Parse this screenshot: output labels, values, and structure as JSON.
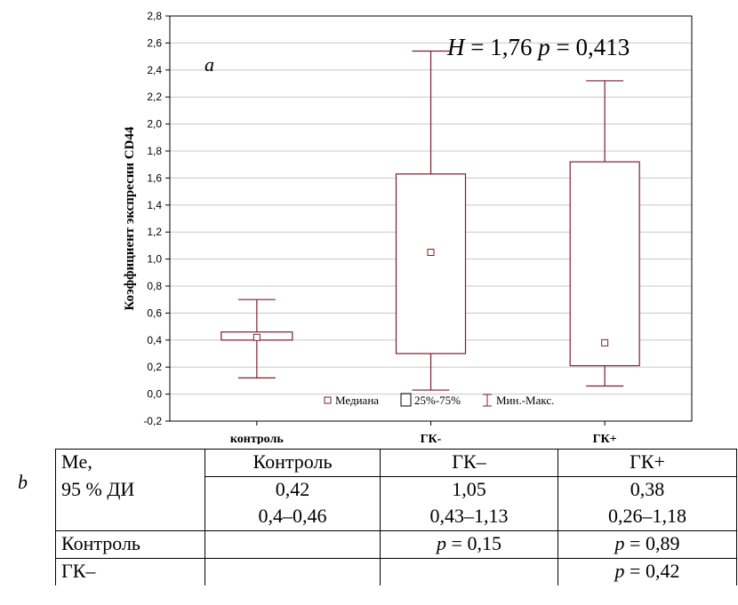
{
  "chart_data": {
    "type": "box",
    "panel_letter": "a",
    "ylabel": "Коэффициент экспресии CD44",
    "ylim": [
      -0.2,
      2.8
    ],
    "yticks": [
      "-0,2",
      "0,0",
      "0,2",
      "0,4",
      "0,6",
      "0,8",
      "1,0",
      "1,2",
      "1,4",
      "1,6",
      "1,8",
      "2,0",
      "2,2",
      "2,4",
      "2,6",
      "2,8"
    ],
    "ytick_values": [
      -0.2,
      0.0,
      0.2,
      0.4,
      0.6,
      0.8,
      1.0,
      1.2,
      1.4,
      1.6,
      1.8,
      2.0,
      2.2,
      2.4,
      2.6,
      2.8
    ],
    "grid": true,
    "categories": [
      "контроль",
      "ГК-",
      "ГК+"
    ],
    "boxes": [
      {
        "category": "контроль",
        "min": 0.12,
        "q1": 0.4,
        "median": 0.42,
        "q3": 0.46,
        "max": 0.7
      },
      {
        "category": "ГК-",
        "min": 0.03,
        "q1": 0.3,
        "median": 1.05,
        "q3": 1.63,
        "max": 2.54
      },
      {
        "category": "ГК+",
        "min": 0.06,
        "q1": 0.21,
        "median": 0.38,
        "q3": 1.72,
        "max": 2.32
      }
    ],
    "annotation": {
      "h_label": "H",
      "h_eq": " = 1,76 ",
      "p_label": "p",
      "p_eq": " = 0,413"
    },
    "legend": {
      "placement": "bottom-center",
      "median": "Медиана",
      "iqr": "25%-75%",
      "range": "Мин.-Макс."
    },
    "colors": {
      "box": "#7a1f2b",
      "grid": "#c8c8c8",
      "axis": "#000000"
    }
  },
  "table": {
    "letter": "b",
    "header": {
      "row_label_1": "Me,",
      "row_label_2": "95 % ДИ",
      "cols": [
        "Контроль",
        "ГК–",
        "ГК+"
      ]
    },
    "medians": [
      "0,42",
      "1,05",
      "0,38"
    ],
    "ci": [
      "0,4–0,46",
      "0,43–1,13",
      "0,26–1,18"
    ],
    "rows": [
      {
        "label": "Контроль",
        "cells": [
          "",
          "= 0,15",
          "= 0,89"
        ]
      },
      {
        "label": "ГК–",
        "cells": [
          "",
          "",
          "= 0,42"
        ]
      }
    ],
    "p_symbol": "p"
  }
}
